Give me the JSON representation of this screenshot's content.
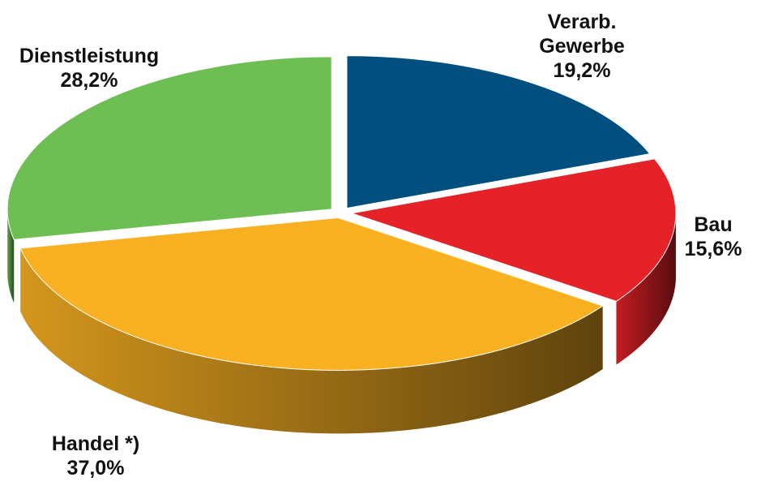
{
  "chart_data": {
    "type": "pie",
    "categories": [
      "Verarb. Gewerbe",
      "Bau",
      "Handel *)",
      "Dienstleistung"
    ],
    "values": [
      19.2,
      15.6,
      37.0,
      28.2
    ],
    "value_labels": [
      "19,2%",
      "15,6%",
      "37,0%",
      "28,2%"
    ],
    "colors": [
      "#004f7f",
      "#e52228",
      "#f9b122",
      "#6dbf54"
    ]
  }
}
